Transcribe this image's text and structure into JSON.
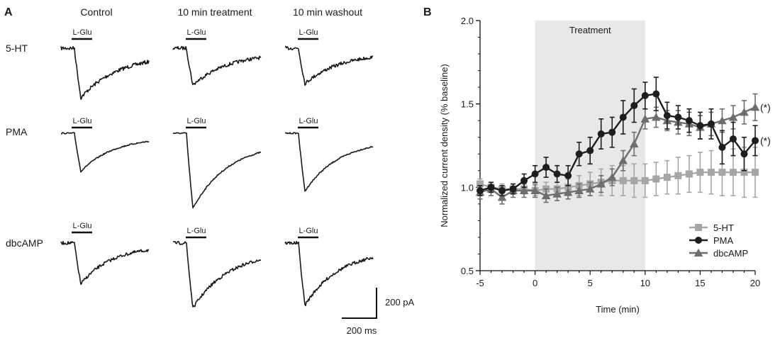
{
  "panel_a": {
    "label": "A",
    "columns": [
      "Control",
      "10 min treatment",
      "10 min washout"
    ],
    "rows": [
      "5-HT",
      "PMA",
      "dbcAMP"
    ],
    "stim_label": "L-Glu",
    "scale_current": "200 pA",
    "scale_time": "200 ms",
    "traces": [
      {
        "row": 0,
        "col": 0,
        "peak": 70,
        "recovery": 0.45,
        "noise": 2.6
      },
      {
        "row": 0,
        "col": 1,
        "peak": 52,
        "recovery": 0.5,
        "noise": 2.4
      },
      {
        "row": 0,
        "col": 2,
        "peak": 50,
        "recovery": 0.5,
        "noise": 2.4
      },
      {
        "row": 1,
        "col": 0,
        "peak": 54,
        "recovery": 0.6,
        "noise": 0.9
      },
      {
        "row": 1,
        "col": 1,
        "peak": 106,
        "recovery": 0.5,
        "noise": 0.9
      },
      {
        "row": 1,
        "col": 2,
        "peak": 82,
        "recovery": 0.55,
        "noise": 0.9
      },
      {
        "row": 2,
        "col": 0,
        "peak": 58,
        "recovery": 0.7,
        "noise": 2.2
      },
      {
        "row": 2,
        "col": 1,
        "peak": 92,
        "recovery": 0.5,
        "noise": 2.2
      },
      {
        "row": 2,
        "col": 2,
        "peak": 88,
        "recovery": 0.55,
        "noise": 2.2
      }
    ]
  },
  "chart_data": {
    "type": "line",
    "panel_label": "B",
    "xlabel": "Time (min)",
    "ylabel": "Normalized current density (% baseline)",
    "xlim": [
      -5,
      20
    ],
    "ylim": [
      0.5,
      2.0
    ],
    "xticks": [
      -5,
      0,
      5,
      10,
      15,
      20
    ],
    "yticks": [
      0.5,
      1.0,
      1.5,
      2.0
    ],
    "ytick_labels": [
      "0.5",
      "1.0",
      "1.5",
      "2.0"
    ],
    "shaded_region": {
      "x0": 0,
      "x1": 10,
      "label": "Treatment"
    },
    "legend_position": "bottom-right",
    "series": [
      {
        "name": "5-HT",
        "marker": "square",
        "color": "#a6a6a6",
        "x": [
          -5,
          -4,
          -3,
          -2,
          -1,
          0,
          1,
          2,
          3,
          4,
          5,
          6,
          7,
          8,
          9,
          10,
          11,
          12,
          13,
          14,
          15,
          16,
          17,
          18,
          19,
          20
        ],
        "y": [
          1.02,
          1.0,
          0.99,
          0.99,
          0.99,
          0.98,
          0.99,
          0.99,
          1.0,
          1.01,
          1.02,
          1.03,
          1.04,
          1.04,
          1.04,
          1.04,
          1.05,
          1.06,
          1.07,
          1.08,
          1.09,
          1.09,
          1.09,
          1.09,
          1.09,
          1.09
        ],
        "err": [
          0.03,
          0.03,
          0.03,
          0.03,
          0.03,
          0.03,
          0.04,
          0.04,
          0.05,
          0.06,
          0.07,
          0.08,
          0.09,
          0.09,
          0.1,
          0.1,
          0.1,
          0.1,
          0.11,
          0.11,
          0.12,
          0.13,
          0.14,
          0.14,
          0.15,
          0.15
        ]
      },
      {
        "name": "PMA",
        "marker": "circle",
        "color": "#1e1e1e",
        "x": [
          -5,
          -4,
          -3,
          -2,
          -1,
          0,
          1,
          2,
          3,
          4,
          5,
          6,
          7,
          8,
          9,
          10,
          11,
          12,
          13,
          14,
          15,
          16,
          17,
          18,
          19,
          20
        ],
        "y": [
          0.98,
          1.0,
          0.98,
          0.99,
          1.04,
          1.08,
          1.12,
          1.08,
          1.07,
          1.2,
          1.22,
          1.32,
          1.33,
          1.42,
          1.49,
          1.55,
          1.56,
          1.43,
          1.42,
          1.4,
          1.37,
          1.38,
          1.24,
          1.29,
          1.2,
          1.28
        ],
        "err": [
          0.03,
          0.03,
          0.03,
          0.03,
          0.04,
          0.05,
          0.06,
          0.05,
          0.06,
          0.07,
          0.08,
          0.09,
          0.09,
          0.1,
          0.1,
          0.08,
          0.1,
          0.08,
          0.07,
          0.07,
          0.08,
          0.09,
          0.1,
          0.1,
          0.1,
          0.09
        ]
      },
      {
        "name": "dbcAMP",
        "marker": "triangle",
        "color": "#6e6e6e",
        "x": [
          -5,
          -4,
          -3,
          -2,
          -1,
          0,
          1,
          2,
          3,
          4,
          5,
          6,
          7,
          8,
          9,
          10,
          11,
          12,
          13,
          14,
          15,
          16,
          17,
          18,
          19,
          20
        ],
        "y": [
          0.97,
          0.99,
          0.94,
          0.98,
          0.98,
          0.98,
          0.95,
          0.96,
          0.97,
          0.98,
          0.99,
          1.02,
          1.06,
          1.16,
          1.26,
          1.41,
          1.42,
          1.4,
          1.39,
          1.38,
          1.36,
          1.38,
          1.4,
          1.42,
          1.45,
          1.48
        ],
        "err": [
          0.04,
          0.04,
          0.04,
          0.04,
          0.04,
          0.04,
          0.04,
          0.04,
          0.04,
          0.04,
          0.04,
          0.05,
          0.05,
          0.06,
          0.07,
          0.06,
          0.06,
          0.06,
          0.07,
          0.07,
          0.07,
          0.07,
          0.07,
          0.07,
          0.07,
          0.08
        ]
      }
    ],
    "annotations": [
      {
        "text": "(*)",
        "series": "dbcAMP"
      },
      {
        "text": "(*)",
        "series": "PMA"
      }
    ]
  }
}
